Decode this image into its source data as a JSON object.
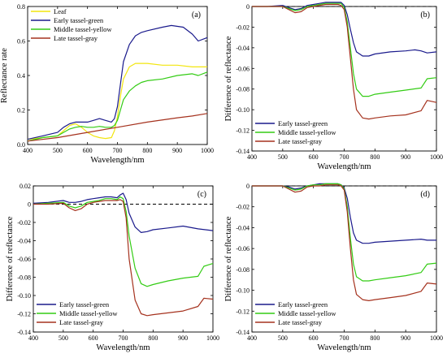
{
  "colors": {
    "leaf": "#f2e60f",
    "early": "#1a1a8c",
    "middle": "#33cc14",
    "late": "#a5321e"
  },
  "chart_data": [
    {
      "type": "line",
      "panel_label": "(a)",
      "xlabel": "Wavelength/nm",
      "ylabel": "Reflectance rate",
      "xlim": [
        400,
        1000
      ],
      "ylim": [
        0,
        0.8
      ],
      "xticks": [
        "400",
        "500",
        "600",
        "700",
        "800",
        "900",
        "1000"
      ],
      "yticks": [
        "0.0",
        "0.2",
        "0.4",
        "0.6",
        "0.8"
      ],
      "zero_line": false,
      "legend_position": "top-left",
      "series": [
        {
          "name": "Leaf",
          "color_key": "leaf",
          "x": [
            400,
            450,
            500,
            520,
            540,
            560,
            580,
            600,
            620,
            640,
            660,
            680,
            690,
            700,
            710,
            720,
            740,
            760,
            780,
            800,
            850,
            900,
            950,
            1000
          ],
          "y": [
            0.03,
            0.04,
            0.05,
            0.08,
            0.11,
            0.12,
            0.1,
            0.07,
            0.05,
            0.04,
            0.035,
            0.04,
            0.08,
            0.16,
            0.28,
            0.38,
            0.45,
            0.47,
            0.47,
            0.47,
            0.46,
            0.46,
            0.45,
            0.45
          ]
        },
        {
          "name": "Early tassel-green",
          "color_key": "early",
          "x": [
            400,
            450,
            500,
            520,
            540,
            560,
            580,
            600,
            620,
            640,
            660,
            680,
            690,
            700,
            710,
            720,
            740,
            760,
            780,
            800,
            850,
            880,
            920,
            950,
            970,
            1000
          ],
          "y": [
            0.03,
            0.05,
            0.07,
            0.1,
            0.12,
            0.13,
            0.13,
            0.13,
            0.14,
            0.15,
            0.14,
            0.13,
            0.15,
            0.22,
            0.35,
            0.48,
            0.58,
            0.63,
            0.65,
            0.66,
            0.68,
            0.69,
            0.68,
            0.64,
            0.6,
            0.62
          ]
        },
        {
          "name": "Middle tassel-yellow",
          "color_key": "middle",
          "x": [
            400,
            450,
            500,
            520,
            540,
            560,
            580,
            600,
            620,
            640,
            660,
            680,
            690,
            700,
            710,
            720,
            740,
            760,
            780,
            800,
            850,
            900,
            950,
            970,
            1000
          ],
          "y": [
            0.02,
            0.04,
            0.05,
            0.07,
            0.09,
            0.1,
            0.105,
            0.1,
            0.1,
            0.105,
            0.1,
            0.1,
            0.11,
            0.14,
            0.2,
            0.26,
            0.31,
            0.34,
            0.36,
            0.37,
            0.38,
            0.4,
            0.41,
            0.4,
            0.42
          ]
        },
        {
          "name": "Late tassel-gray",
          "color_key": "late",
          "x": [
            400,
            500,
            600,
            700,
            800,
            900,
            950,
            1000
          ],
          "y": [
            0.02,
            0.04,
            0.07,
            0.1,
            0.13,
            0.155,
            0.165,
            0.18
          ]
        }
      ]
    },
    {
      "type": "line",
      "panel_label": "(b)",
      "xlabel": "Wavelength/nm",
      "ylabel": "Difference of reflectance",
      "xlim": [
        400,
        1000
      ],
      "ylim": [
        -0.14,
        0.0
      ],
      "xticks": [
        "400",
        "500",
        "600",
        "700",
        "800",
        "900",
        "1000"
      ],
      "yticks": [
        "0",
        "-0.02",
        "-0.04",
        "-0.06",
        "-0.08",
        "-0.10",
        "-0.12",
        "-0.14"
      ],
      "zero_line": true,
      "legend_position": "bottom-left",
      "series": [
        {
          "name": "Early tassel-green",
          "color_key": "early",
          "x": [
            400,
            450,
            500,
            520,
            540,
            560,
            580,
            600,
            620,
            640,
            660,
            680,
            690,
            700,
            710,
            720,
            730,
            740,
            760,
            780,
            800,
            850,
            900,
            930,
            950,
            970,
            1000
          ],
          "y": [
            0,
            0,
            0.001,
            -0.001,
            -0.003,
            -0.002,
            0.001,
            0.002,
            0.003,
            0.004,
            0.004,
            0.004,
            0.004,
            0.001,
            -0.008,
            -0.022,
            -0.035,
            -0.044,
            -0.048,
            -0.048,
            -0.046,
            -0.044,
            -0.043,
            -0.042,
            -0.043,
            -0.045,
            -0.044
          ]
        },
        {
          "name": "Middle tassel-yellow",
          "color_key": "middle",
          "x": [
            400,
            450,
            500,
            520,
            540,
            560,
            580,
            600,
            620,
            640,
            660,
            680,
            690,
            700,
            710,
            720,
            730,
            740,
            760,
            780,
            800,
            850,
            900,
            950,
            970,
            1000
          ],
          "y": [
            0,
            0,
            0,
            -0.002,
            -0.004,
            -0.003,
            0,
            0.001,
            0.002,
            0.003,
            0.003,
            0.003,
            0.003,
            -0.001,
            -0.015,
            -0.04,
            -0.065,
            -0.08,
            -0.087,
            -0.087,
            -0.085,
            -0.083,
            -0.081,
            -0.079,
            -0.07,
            -0.069
          ]
        },
        {
          "name": "Late tassel-gray",
          "color_key": "late",
          "x": [
            400,
            450,
            500,
            520,
            540,
            560,
            580,
            600,
            620,
            640,
            660,
            680,
            690,
            700,
            710,
            720,
            730,
            740,
            760,
            780,
            800,
            850,
            900,
            950,
            970,
            1000
          ],
          "y": [
            0,
            0,
            0,
            -0.003,
            -0.006,
            -0.005,
            -0.001,
            0,
            0.001,
            0.002,
            0.002,
            0.002,
            0.001,
            -0.003,
            -0.02,
            -0.05,
            -0.08,
            -0.1,
            -0.108,
            -0.109,
            -0.108,
            -0.106,
            -0.105,
            -0.101,
            -0.091,
            -0.093
          ]
        }
      ]
    },
    {
      "type": "line",
      "panel_label": "(c)",
      "xlabel": "Wavelength/nm",
      "ylabel": "Difference of reflectance",
      "xlim": [
        400,
        1000
      ],
      "ylim": [
        -0.14,
        0.02
      ],
      "xticks": [
        "400",
        "500",
        "600",
        "700",
        "800",
        "900",
        "1000"
      ],
      "yticks": [
        "0.02",
        "0",
        "-0.02",
        "-0.04",
        "-0.06",
        "-0.08",
        "-0.10",
        "-0.12",
        "-0.14"
      ],
      "zero_line": true,
      "legend_position": "bottom-left",
      "series": [
        {
          "name": "Early tassel-green",
          "color_key": "early",
          "x": [
            400,
            450,
            500,
            520,
            540,
            560,
            580,
            600,
            620,
            640,
            660,
            680,
            690,
            700,
            710,
            720,
            740,
            760,
            780,
            800,
            850,
            900,
            950,
            1000
          ],
          "y": [
            0.001,
            0.002,
            0.004,
            0.002,
            0.002,
            0.003,
            0.005,
            0.006,
            0.007,
            0.008,
            0.008,
            0.007,
            0.01,
            0.012,
            0.005,
            -0.01,
            -0.025,
            -0.031,
            -0.03,
            -0.028,
            -0.026,
            -0.024,
            -0.027,
            -0.029
          ]
        },
        {
          "name": "Middle tassel-yellow",
          "color_key": "middle",
          "x": [
            400,
            450,
            500,
            520,
            540,
            560,
            580,
            600,
            620,
            640,
            660,
            680,
            690,
            700,
            710,
            720,
            740,
            760,
            780,
            800,
            850,
            900,
            950,
            970,
            1000
          ],
          "y": [
            0,
            0.001,
            0.002,
            -0.002,
            -0.004,
            -0.002,
            0.002,
            0.003,
            0.004,
            0.006,
            0.006,
            0.005,
            0.008,
            0.006,
            -0.008,
            -0.035,
            -0.07,
            -0.087,
            -0.09,
            -0.088,
            -0.084,
            -0.081,
            -0.079,
            -0.068,
            -0.065
          ]
        },
        {
          "name": "Late tassel-gray",
          "color_key": "late",
          "x": [
            400,
            450,
            500,
            520,
            540,
            560,
            580,
            600,
            620,
            640,
            660,
            680,
            690,
            700,
            710,
            720,
            740,
            760,
            780,
            800,
            850,
            900,
            950,
            970,
            1000
          ],
          "y": [
            0,
            0,
            0.001,
            -0.004,
            -0.007,
            -0.005,
            0,
            0.002,
            0.003,
            0.004,
            0.004,
            0.004,
            0.005,
            0.003,
            -0.015,
            -0.06,
            -0.105,
            -0.12,
            -0.122,
            -0.121,
            -0.119,
            -0.117,
            -0.112,
            -0.103,
            -0.104
          ]
        }
      ]
    },
    {
      "type": "line",
      "panel_label": "(d)",
      "xlabel": "Wavelength/nm",
      "ylabel": "Difference of reflectance",
      "xlim": [
        400,
        1000
      ],
      "ylim": [
        -0.14,
        0.0
      ],
      "xticks": [
        "400",
        "500",
        "600",
        "700",
        "800",
        "900",
        "1000"
      ],
      "yticks": [
        "0",
        "-0.02",
        "-0.04",
        "-0.06",
        "-0.08",
        "-0.10",
        "-0.12",
        "-0.14"
      ],
      "zero_line": true,
      "legend_position": "bottom-left",
      "series": [
        {
          "name": "Early tassel-green",
          "color_key": "early",
          "x": [
            400,
            450,
            500,
            520,
            540,
            560,
            580,
            600,
            620,
            640,
            660,
            680,
            690,
            700,
            710,
            720,
            730,
            740,
            760,
            780,
            800,
            850,
            900,
            950,
            970,
            1000
          ],
          "y": [
            0,
            0,
            0,
            -0.001,
            -0.003,
            -0.002,
            0,
            0.001,
            0.002,
            0.002,
            0.002,
            0.002,
            0.001,
            -0.002,
            -0.012,
            -0.03,
            -0.045,
            -0.052,
            -0.055,
            -0.055,
            -0.054,
            -0.053,
            -0.052,
            -0.051,
            -0.052,
            -0.052
          ]
        },
        {
          "name": "Middle tassel-yellow",
          "color_key": "middle",
          "x": [
            400,
            450,
            500,
            520,
            540,
            560,
            580,
            600,
            620,
            640,
            660,
            680,
            690,
            700,
            710,
            720,
            730,
            740,
            760,
            780,
            800,
            850,
            900,
            950,
            970,
            1000
          ],
          "y": [
            0,
            0,
            0,
            -0.002,
            -0.004,
            -0.003,
            0,
            0.001,
            0.001,
            0.002,
            0.002,
            0.002,
            0.001,
            -0.003,
            -0.02,
            -0.05,
            -0.075,
            -0.087,
            -0.091,
            -0.091,
            -0.09,
            -0.088,
            -0.086,
            -0.083,
            -0.075,
            -0.074
          ]
        },
        {
          "name": "Late tassel-gray",
          "color_key": "late",
          "x": [
            400,
            450,
            500,
            520,
            540,
            560,
            580,
            600,
            620,
            640,
            660,
            680,
            690,
            700,
            710,
            720,
            730,
            740,
            760,
            780,
            800,
            850,
            900,
            950,
            970,
            1000
          ],
          "y": [
            0,
            0,
            0,
            -0.003,
            -0.006,
            -0.005,
            -0.001,
            0,
            0,
            0.001,
            0.001,
            0.001,
            0,
            -0.004,
            -0.025,
            -0.06,
            -0.09,
            -0.104,
            -0.109,
            -0.11,
            -0.109,
            -0.107,
            -0.105,
            -0.101,
            -0.093,
            -0.094
          ]
        }
      ]
    }
  ]
}
